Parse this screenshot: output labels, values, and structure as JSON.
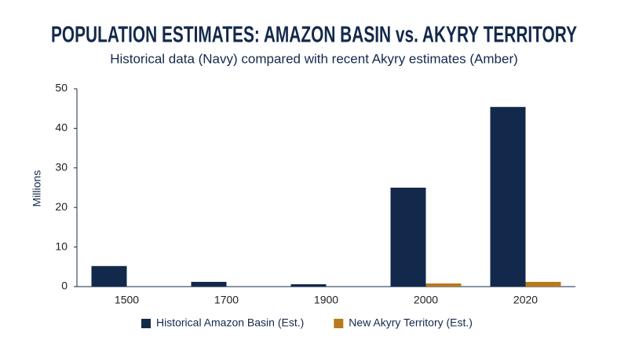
{
  "chart_data": {
    "type": "bar",
    "title": "POPULATION ESTIMATES: AMAZON BASIN vs. AKYRY TERRITORY",
    "subtitle": "Historical data (Navy) compared with recent Akyry estimates (Amber)",
    "y_label": "Millions",
    "categories": [
      "1500",
      "1700",
      "1900",
      "2000",
      "2020"
    ],
    "series": [
      {
        "name": "Historical Amazon Basin (Est.)",
        "color": "#13294b",
        "values": [
          5.2,
          1.2,
          0.6,
          25,
          45.4
        ]
      },
      {
        "name": "New Akyry Territory (Est.)",
        "color": "#b87a1c",
        "values": [
          null,
          null,
          null,
          0.8,
          1.2
        ]
      }
    ],
    "ylim": [
      0,
      50
    ],
    "yticks": [
      0,
      10,
      20,
      30,
      40,
      50
    ],
    "grid": false,
    "legend": "bottom"
  }
}
